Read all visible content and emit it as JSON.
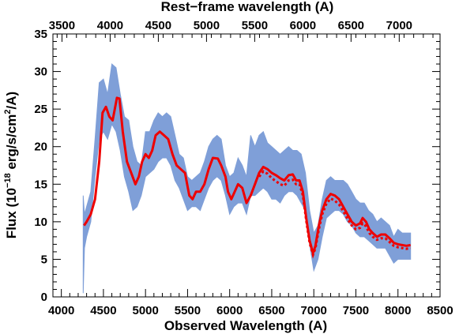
{
  "chart_data": {
    "type": "line",
    "title": "",
    "top_axis_label": "Rest−frame wavelength (A)",
    "xlabel": "Observed Wavelength (A)",
    "ylabel_parts": {
      "pre": "Flux (10",
      "exp": "−18",
      "mid": " erg/s/cm",
      "sq": "2",
      "post": "/A)"
    },
    "xlim": [
      3900,
      8500
    ],
    "ylim": [
      0,
      35
    ],
    "x_ticks": [
      4000,
      4500,
      5000,
      5500,
      6000,
      6500,
      7000,
      7500,
      8000,
      8500
    ],
    "y_ticks": [
      0,
      5,
      10,
      15,
      20,
      25,
      30,
      35
    ],
    "top_ticks": [
      3500,
      4000,
      4500,
      5000,
      5500,
      6000,
      6500,
      7000
    ],
    "top_axis_scale": 1.145,
    "grid": false,
    "colors": {
      "observed": "#7f9fd8",
      "model": "#ee0000",
      "axis": "#000000"
    },
    "series": [
      {
        "style": "band",
        "x": [
          4260,
          4275,
          4300,
          4350,
          4400,
          4450,
          4500,
          4550,
          4600,
          4650,
          4700,
          4750,
          4800,
          4850,
          4900,
          4950,
          5000,
          5050,
          5100,
          5150,
          5200,
          5250,
          5300,
          5350,
          5400,
          5450,
          5500,
          5550,
          5600,
          5650,
          5700,
          5750,
          5800,
          5850,
          5900,
          5950,
          6000,
          6050,
          6100,
          6150,
          6200,
          6250,
          6300,
          6350,
          6400,
          6450,
          6500,
          6550,
          6600,
          6650,
          6700,
          6750,
          6800,
          6850,
          6900,
          6950,
          7000,
          7050,
          7100,
          7150,
          7200,
          7250,
          7300,
          7350,
          7400,
          7450,
          7500,
          7550,
          7600,
          7650,
          7700,
          7750,
          7800,
          7850,
          7900,
          7950,
          8000,
          8050,
          8100,
          8150
        ],
        "low": [
          0.5,
          6.5,
          8,
          10,
          16,
          21,
          22,
          21,
          23,
          22,
          19.5,
          16,
          14,
          11.5,
          12,
          13.5,
          16,
          16.5,
          17,
          18,
          18.5,
          18.5,
          17.5,
          15.5,
          14.5,
          13,
          11.5,
          12,
          12,
          11.5,
          13,
          14.5,
          15.5,
          16,
          15.5,
          13.5,
          11,
          12,
          12.5,
          12.5,
          11,
          13.5,
          13.5,
          14,
          14.5,
          14,
          13,
          13,
          12.5,
          13.5,
          14,
          14,
          13.5,
          12.5,
          11.5,
          7,
          3.5,
          5,
          8,
          10.5,
          11,
          11.5,
          11.5,
          11,
          10,
          9.5,
          8.5,
          8,
          8,
          7.5,
          7,
          6.5,
          6.5,
          6.5,
          5.5,
          4.5,
          5,
          5,
          5,
          5
        ],
        "high": [
          13.5,
          11,
          12,
          14,
          21,
          28.5,
          29,
          27,
          31,
          30.5,
          27,
          24,
          23.5,
          20,
          18,
          17.5,
          22,
          22,
          23.5,
          24.5,
          24,
          24.5,
          24,
          21.5,
          19,
          18.5,
          16,
          15.5,
          16,
          16.5,
          18,
          20,
          21,
          21.5,
          21,
          17.5,
          16,
          16.5,
          18.5,
          17.5,
          16,
          21.5,
          20,
          21.5,
          22,
          20.5,
          20,
          19.5,
          19,
          19.5,
          20,
          19.5,
          19.5,
          19,
          16.5,
          11.5,
          8.5,
          9.5,
          13,
          15.5,
          16,
          15.5,
          15.5,
          15.5,
          15,
          14,
          13,
          12.5,
          12.5,
          11.5,
          11,
          10,
          10.5,
          10,
          9.5,
          8,
          9,
          8.5,
          8.5,
          8.5
        ]
      },
      {
        "style": "solid",
        "x": [
          4270,
          4300,
          4350,
          4400,
          4450,
          4490,
          4530,
          4570,
          4610,
          4660,
          4690,
          4730,
          4780,
          4830,
          4880,
          4920,
          4960,
          5000,
          5040,
          5080,
          5120,
          5170,
          5220,
          5270,
          5320,
          5370,
          5420,
          5470,
          5520,
          5560,
          5600,
          5650,
          5700,
          5750,
          5800,
          5860,
          5900,
          5950,
          5980,
          6020,
          6060,
          6100,
          6150,
          6200,
          6250,
          6300,
          6350,
          6400,
          6450,
          6500,
          6550,
          6600,
          6650,
          6700,
          6750,
          6790,
          6830,
          6870,
          6910,
          6950,
          6990,
          7020,
          7060,
          7100,
          7150,
          7200,
          7250,
          7300,
          7350,
          7400,
          7450,
          7500,
          7550,
          7580,
          7620,
          7660,
          7700,
          7750,
          7800,
          7850,
          7900,
          7950,
          8000,
          8050,
          8100,
          8150
        ],
        "values": [
          9.5,
          10,
          11,
          13,
          18,
          24.5,
          25.3,
          24,
          23.5,
          26.5,
          26.4,
          22,
          18,
          16.5,
          15,
          16,
          18,
          19,
          18.5,
          19.5,
          21.5,
          22,
          21.5,
          21,
          19,
          17.5,
          17,
          16.5,
          13.5,
          13,
          14,
          14,
          15,
          17,
          18.5,
          18.4,
          17.5,
          16,
          14,
          13,
          14,
          15,
          14.5,
          12.5,
          13.5,
          15,
          16.5,
          17.3,
          17,
          16.5,
          16.2,
          15.8,
          15.5,
          16.2,
          16.3,
          15.5,
          15.5,
          14,
          10.5,
          7.5,
          5.8,
          6.8,
          9.5,
          11.5,
          13,
          13.7,
          13.5,
          13,
          12,
          11,
          10,
          9.5,
          9.8,
          10.5,
          10,
          9,
          8.5,
          8,
          8.3,
          8.3,
          7.8,
          7.2,
          7,
          6.9,
          6.8,
          6.9
        ]
      },
      {
        "style": "dotted",
        "x": [
          6350,
          6400,
          6450,
          6500,
          6550,
          6600,
          6650,
          6700,
          6750,
          6790,
          6830,
          6870,
          6910,
          6950,
          6990,
          7020,
          7060,
          7100,
          7150,
          7200,
          7250,
          7300,
          7350,
          7400,
          7450,
          7500,
          7550,
          7580,
          7620,
          7660,
          7700,
          7750,
          7800,
          7850,
          7900,
          7950,
          8000,
          8050,
          8100,
          8150
        ],
        "values": [
          16,
          16.7,
          16.4,
          15.8,
          15.4,
          15,
          14.8,
          15.5,
          15.6,
          15,
          15,
          13.5,
          10.2,
          7.2,
          5.6,
          6.5,
          9,
          11,
          12.4,
          13.1,
          12.8,
          12.3,
          11.4,
          10.4,
          9.5,
          9,
          9.2,
          9.8,
          9.4,
          8.5,
          8,
          7.6,
          7.8,
          7.8,
          7.3,
          6.8,
          6.6,
          6.5,
          6.4,
          6.5
        ]
      }
    ]
  }
}
